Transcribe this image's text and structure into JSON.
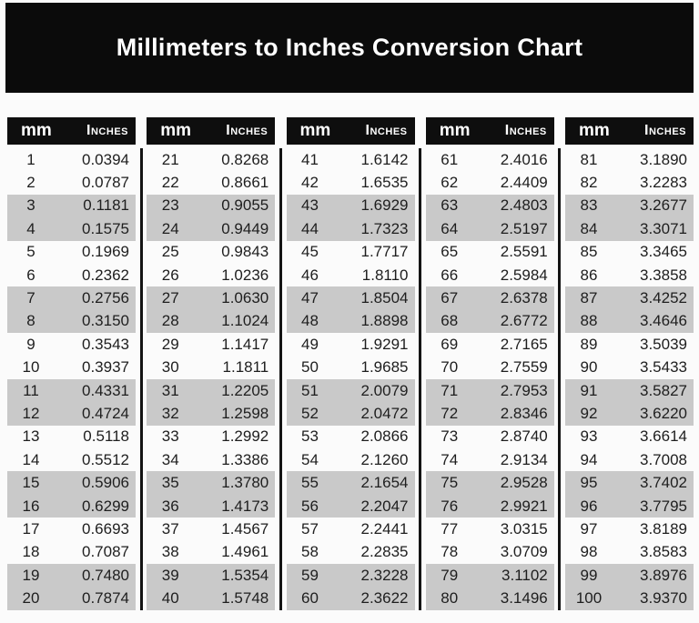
{
  "title": "Millimeters to Inches Conversion Chart",
  "table": {
    "column_headers": {
      "mm": "mm",
      "inches": "Inches"
    },
    "groups": [
      {
        "rows": [
          [
            "1",
            "0.0394"
          ],
          [
            "2",
            "0.0787"
          ],
          [
            "3",
            "0.1181"
          ],
          [
            "4",
            "0.1575"
          ],
          [
            "5",
            "0.1969"
          ],
          [
            "6",
            "0.2362"
          ],
          [
            "7",
            "0.2756"
          ],
          [
            "8",
            "0.3150"
          ],
          [
            "9",
            "0.3543"
          ],
          [
            "10",
            "0.3937"
          ],
          [
            "11",
            "0.4331"
          ],
          [
            "12",
            "0.4724"
          ],
          [
            "13",
            "0.5118"
          ],
          [
            "14",
            "0.5512"
          ],
          [
            "15",
            "0.5906"
          ],
          [
            "16",
            "0.6299"
          ],
          [
            "17",
            "0.6693"
          ],
          [
            "18",
            "0.7087"
          ],
          [
            "19",
            "0.7480"
          ],
          [
            "20",
            "0.7874"
          ]
        ]
      },
      {
        "rows": [
          [
            "21",
            "0.8268"
          ],
          [
            "22",
            "0.8661"
          ],
          [
            "23",
            "0.9055"
          ],
          [
            "24",
            "0.9449"
          ],
          [
            "25",
            "0.9843"
          ],
          [
            "26",
            "1.0236"
          ],
          [
            "27",
            "1.0630"
          ],
          [
            "28",
            "1.1024"
          ],
          [
            "29",
            "1.1417"
          ],
          [
            "30",
            "1.1811"
          ],
          [
            "31",
            "1.2205"
          ],
          [
            "32",
            "1.2598"
          ],
          [
            "33",
            "1.2992"
          ],
          [
            "34",
            "1.3386"
          ],
          [
            "35",
            "1.3780"
          ],
          [
            "36",
            "1.4173"
          ],
          [
            "37",
            "1.4567"
          ],
          [
            "38",
            "1.4961"
          ],
          [
            "39",
            "1.5354"
          ],
          [
            "40",
            "1.5748"
          ]
        ]
      },
      {
        "rows": [
          [
            "41",
            "1.6142"
          ],
          [
            "42",
            "1.6535"
          ],
          [
            "43",
            "1.6929"
          ],
          [
            "44",
            "1.7323"
          ],
          [
            "45",
            "1.7717"
          ],
          [
            "46",
            "1.8110"
          ],
          [
            "47",
            "1.8504"
          ],
          [
            "48",
            "1.8898"
          ],
          [
            "49",
            "1.9291"
          ],
          [
            "50",
            "1.9685"
          ],
          [
            "51",
            "2.0079"
          ],
          [
            "52",
            "2.0472"
          ],
          [
            "53",
            "2.0866"
          ],
          [
            "54",
            "2.1260"
          ],
          [
            "55",
            "2.1654"
          ],
          [
            "56",
            "2.2047"
          ],
          [
            "57",
            "2.2441"
          ],
          [
            "58",
            "2.2835"
          ],
          [
            "59",
            "2.3228"
          ],
          [
            "60",
            "2.3622"
          ]
        ]
      },
      {
        "rows": [
          [
            "61",
            "2.4016"
          ],
          [
            "62",
            "2.4409"
          ],
          [
            "63",
            "2.4803"
          ],
          [
            "64",
            "2.5197"
          ],
          [
            "65",
            "2.5591"
          ],
          [
            "66",
            "2.5984"
          ],
          [
            "67",
            "2.6378"
          ],
          [
            "68",
            "2.6772"
          ],
          [
            "69",
            "2.7165"
          ],
          [
            "70",
            "2.7559"
          ],
          [
            "71",
            "2.7953"
          ],
          [
            "72",
            "2.8346"
          ],
          [
            "73",
            "2.8740"
          ],
          [
            "74",
            "2.9134"
          ],
          [
            "75",
            "2.9528"
          ],
          [
            "76",
            "2.9921"
          ],
          [
            "77",
            "3.0315"
          ],
          [
            "78",
            "3.0709"
          ],
          [
            "79",
            "3.1102"
          ],
          [
            "80",
            "3.1496"
          ]
        ]
      },
      {
        "rows": [
          [
            "81",
            "3.1890"
          ],
          [
            "82",
            "3.2283"
          ],
          [
            "83",
            "3.2677"
          ],
          [
            "84",
            "3.3071"
          ],
          [
            "85",
            "3.3465"
          ],
          [
            "86",
            "3.3858"
          ],
          [
            "87",
            "3.4252"
          ],
          [
            "88",
            "3.4646"
          ],
          [
            "89",
            "3.5039"
          ],
          [
            "90",
            "3.5433"
          ],
          [
            "91",
            "3.5827"
          ],
          [
            "92",
            "3.6220"
          ],
          [
            "93",
            "3.6614"
          ],
          [
            "94",
            "3.7008"
          ],
          [
            "95",
            "3.7402"
          ],
          [
            "96",
            "3.7795"
          ],
          [
            "97",
            "3.8189"
          ],
          [
            "98",
            "3.8583"
          ],
          [
            "99",
            "3.8976"
          ],
          [
            "100",
            "3.9370"
          ]
        ]
      }
    ]
  },
  "colors": {
    "banner_bg": "#0b0b0b",
    "header_bg": "#0e0e0e",
    "row_alt_bg": "#c9c9c9",
    "divider": "#141414",
    "title_text": "#ffffff",
    "body_text": "#1e1e1e",
    "page_bg": "#fbfbfb"
  }
}
